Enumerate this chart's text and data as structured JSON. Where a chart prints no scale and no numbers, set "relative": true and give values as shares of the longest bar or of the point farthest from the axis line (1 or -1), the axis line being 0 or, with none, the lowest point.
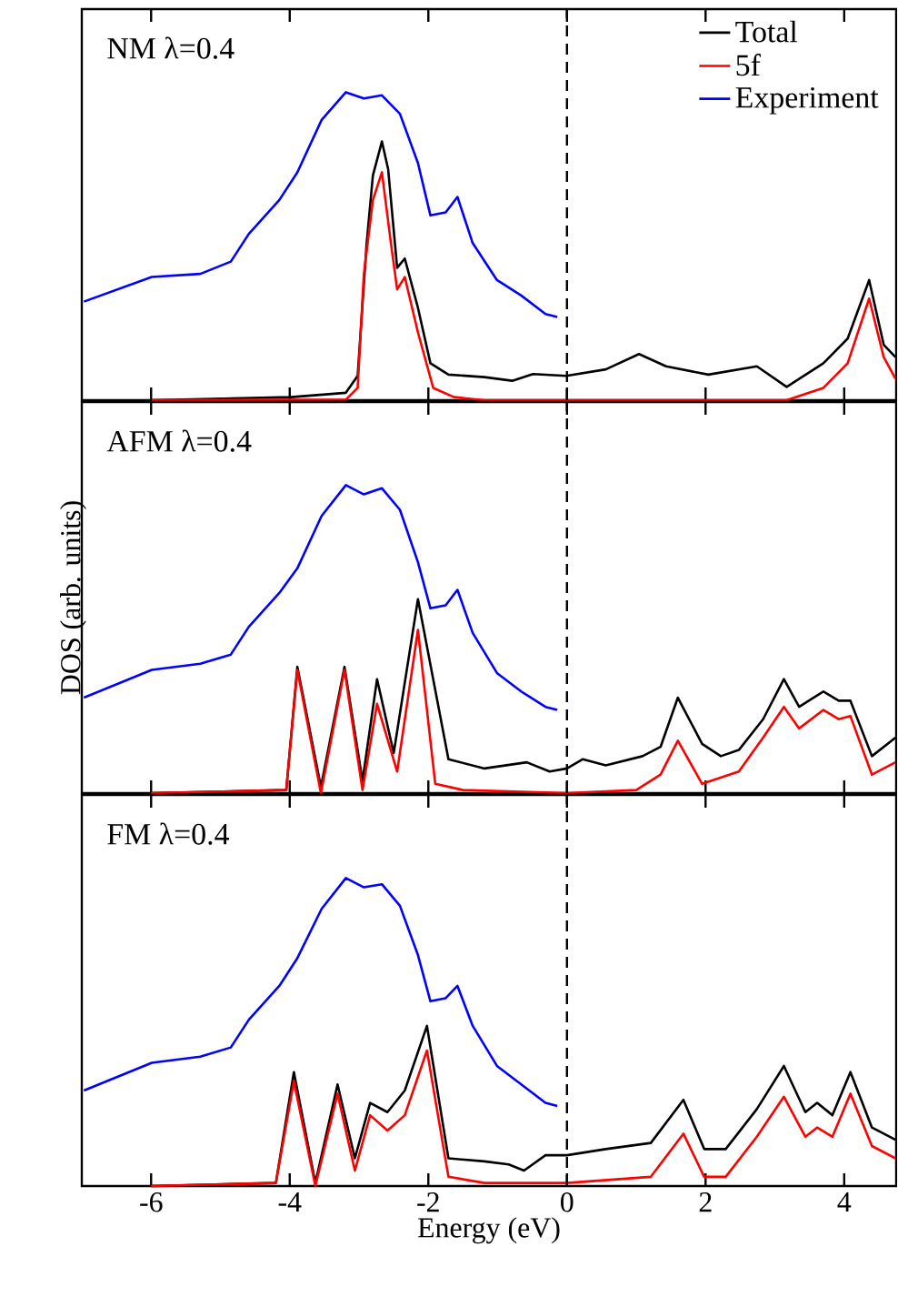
{
  "chart_data": [
    {
      "type": "line",
      "relative": true,
      "xlim": [
        -7,
        4.75
      ],
      "xticks": [
        -6,
        -4,
        -2,
        0,
        2,
        4
      ],
      "tick_labels": false,
      "legend": "top right",
      "annotations": [
        "NM λ=0.4"
      ],
      "ref_lines": [
        {
          "axis": "x",
          "value": 0,
          "line_style": "dashed",
          "color": "#000000"
        }
      ],
      "series": [
        {
          "name": "Total",
          "color": "#000000",
          "x": [
            -5.99,
            -3.98,
            -3.19,
            -3.02,
            -2.89,
            -2.8,
            -2.67,
            -2.58,
            -2.45,
            -2.34,
            -2.15,
            -1.97,
            -1.71,
            -1.19,
            -0.79,
            -0.49,
            -0.01,
            0.56,
            1.04,
            1.43,
            2.04,
            2.74,
            3.17,
            3.7,
            4.05,
            4.36,
            4.57,
            4.74
          ],
          "values": [
            0,
            0.01,
            0.024,
            0.079,
            0.51,
            0.73,
            0.84,
            0.75,
            0.43,
            0.46,
            0.3,
            0.12,
            0.083,
            0.075,
            0.063,
            0.085,
            0.079,
            0.1,
            0.15,
            0.11,
            0.083,
            0.11,
            0.043,
            0.12,
            0.2,
            0.39,
            0.18,
            0.14
          ]
        },
        {
          "name": "5f",
          "color": "#ff0000",
          "x": [
            -5.99,
            -3.19,
            -3.02,
            -2.93,
            -2.8,
            -2.67,
            -2.54,
            -2.45,
            -2.34,
            -2.15,
            -1.93,
            -1.63,
            -1.19,
            3.17,
            3.7,
            4.05,
            4.36,
            4.57,
            4.74
          ],
          "values": [
            0,
            0.002,
            0.04,
            0.41,
            0.65,
            0.74,
            0.51,
            0.36,
            0.4,
            0.22,
            0.04,
            0.01,
            0,
            0,
            0.04,
            0.12,
            0.33,
            0.14,
            0.07
          ]
        },
        {
          "name": "Experiment",
          "color": "#0000ff",
          "x": [
            -6.97,
            -5.99,
            -5.29,
            -4.85,
            -4.59,
            -4.15,
            -3.89,
            -3.54,
            -3.19,
            -2.93,
            -2.67,
            -2.41,
            -2.15,
            -1.97,
            -1.75,
            -1.58,
            -1.36,
            -1.01,
            -0.66,
            -0.31,
            -0.14
          ],
          "values": [
            0.32,
            0.4,
            0.41,
            0.45,
            0.54,
            0.65,
            0.74,
            0.91,
            1.0,
            0.98,
            0.99,
            0.93,
            0.77,
            0.6,
            0.61,
            0.66,
            0.51,
            0.39,
            0.34,
            0.28,
            0.27
          ]
        }
      ]
    },
    {
      "type": "line",
      "relative": true,
      "xlim": [
        -7,
        4.75
      ],
      "xticks": [
        -6,
        -4,
        -2,
        0,
        2,
        4
      ],
      "tick_labels": false,
      "ylabel": "DOS (arb. units)",
      "annotations": [
        "AFM λ=0.4"
      ],
      "ref_lines": [
        {
          "axis": "x",
          "value": 0,
          "line_style": "dashed",
          "color": "#000000"
        }
      ],
      "series": [
        {
          "color": "#000000",
          "x": [
            -6,
            -4.05,
            -3.89,
            -3.55,
            -3.21,
            -2.95,
            -2.74,
            -2.5,
            -2.15,
            -1.71,
            -1.19,
            -0.58,
            -0.25,
            0,
            0.23,
            0.56,
            1.09,
            1.35,
            1.6,
            1.95,
            2.22,
            2.48,
            2.83,
            3.13,
            3.35,
            3.7,
            3.92,
            4.09,
            4.4,
            4.74
          ],
          "values": [
            0,
            0.01,
            0.41,
            0.02,
            0.41,
            0.04,
            0.37,
            0.13,
            0.63,
            0.11,
            0.08,
            0.1,
            0.07,
            0.08,
            0.11,
            0.09,
            0.12,
            0.15,
            0.31,
            0.16,
            0.12,
            0.14,
            0.24,
            0.37,
            0.28,
            0.33,
            0.3,
            0.3,
            0.12,
            0.18
          ]
        },
        {
          "color": "#ff0000",
          "x": [
            -6,
            -4.05,
            -3.89,
            -3.55,
            -3.21,
            -2.95,
            -2.74,
            -2.45,
            -2.15,
            -1.9,
            -1.5,
            0,
            1.0,
            1.35,
            1.6,
            1.95,
            2.48,
            2.83,
            3.13,
            3.35,
            3.7,
            3.92,
            4.09,
            4.4,
            4.74
          ],
          "values": [
            0,
            0.01,
            0.4,
            0,
            0.4,
            0.01,
            0.29,
            0.07,
            0.53,
            0.03,
            0.01,
            0,
            0.01,
            0.06,
            0.17,
            0.03,
            0.07,
            0.18,
            0.28,
            0.21,
            0.27,
            0.24,
            0.25,
            0.06,
            0.1
          ]
        },
        {
          "color": "#0000ff",
          "x": [
            -6.97,
            -5.99,
            -5.29,
            -4.85,
            -4.59,
            -4.15,
            -3.89,
            -3.54,
            -3.19,
            -2.93,
            -2.67,
            -2.41,
            -2.15,
            -1.97,
            -1.75,
            -1.58,
            -1.36,
            -1.01,
            -0.66,
            -0.31,
            -0.14
          ],
          "values": [
            0.31,
            0.4,
            0.42,
            0.45,
            0.54,
            0.65,
            0.73,
            0.9,
            1.0,
            0.97,
            0.99,
            0.92,
            0.75,
            0.6,
            0.61,
            0.66,
            0.52,
            0.39,
            0.33,
            0.28,
            0.27
          ]
        }
      ]
    },
    {
      "type": "line",
      "relative": true,
      "xlim": [
        -7,
        4.75
      ],
      "xticks": [
        -6,
        -4,
        -2,
        0,
        2,
        4
      ],
      "tick_labels": "x",
      "xlabel": "Energy (eV)",
      "annotations": [
        "FM λ=0.4"
      ],
      "ref_lines": [
        {
          "axis": "x",
          "value": 0,
          "line_style": "dashed",
          "color": "#000000"
        }
      ],
      "series": [
        {
          "color": "#000000",
          "x": [
            -6,
            -4.2,
            -3.94,
            -3.63,
            -3.31,
            -3.06,
            -2.84,
            -2.59,
            -2.34,
            -2.02,
            -1.71,
            -1.19,
            -0.84,
            -0.62,
            -0.31,
            0,
            0.56,
            1.21,
            1.68,
            1.98,
            2.29,
            2.74,
            3.13,
            3.44,
            3.61,
            3.83,
            4.09,
            4.4,
            4.74
          ],
          "values": [
            0,
            0.01,
            0.37,
            0.01,
            0.33,
            0.09,
            0.27,
            0.24,
            0.31,
            0.52,
            0.09,
            0.08,
            0.07,
            0.05,
            0.1,
            0.1,
            0.12,
            0.14,
            0.28,
            0.12,
            0.12,
            0.25,
            0.39,
            0.24,
            0.27,
            0.23,
            0.37,
            0.19,
            0.15
          ]
        },
        {
          "color": "#ff0000",
          "x": [
            -6,
            -4.2,
            -3.94,
            -3.63,
            -3.31,
            -3.06,
            -2.84,
            -2.59,
            -2.34,
            -2.02,
            -1.71,
            -1.19,
            0,
            1.21,
            1.68,
            1.98,
            2.29,
            2.74,
            3.13,
            3.44,
            3.61,
            3.83,
            4.09,
            4.4,
            4.74
          ],
          "values": [
            0,
            0.01,
            0.34,
            0,
            0.3,
            0.05,
            0.23,
            0.18,
            0.23,
            0.44,
            0.03,
            0.01,
            0.01,
            0.03,
            0.17,
            0.03,
            0.03,
            0.16,
            0.29,
            0.16,
            0.19,
            0.16,
            0.3,
            0.13,
            0.09
          ]
        },
        {
          "color": "#0000ff",
          "x": [
            -6.97,
            -5.99,
            -5.29,
            -4.85,
            -4.59,
            -4.15,
            -3.89,
            -3.54,
            -3.19,
            -2.93,
            -2.67,
            -2.41,
            -2.15,
            -1.97,
            -1.75,
            -1.58,
            -1.36,
            -1.01,
            -0.66,
            -0.31,
            -0.14
          ],
          "values": [
            0.31,
            0.4,
            0.42,
            0.45,
            0.54,
            0.65,
            0.74,
            0.9,
            1.0,
            0.97,
            0.98,
            0.91,
            0.75,
            0.6,
            0.61,
            0.65,
            0.52,
            0.39,
            0.33,
            0.27,
            0.26
          ]
        }
      ]
    }
  ]
}
